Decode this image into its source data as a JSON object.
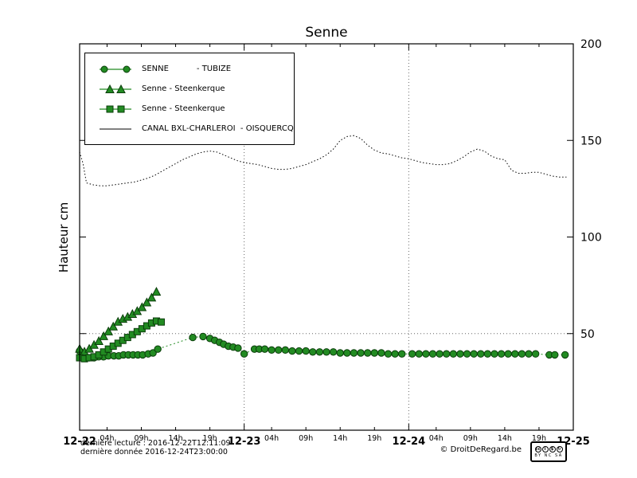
{
  "title": "Senne",
  "y_axis_label": "Hauteur cm",
  "legend": {
    "items": [
      {
        "label": "SENNE           - TUBIZE",
        "marker": "circle-line"
      },
      {
        "label": "Senne - Steenkerque",
        "marker": "triangle"
      },
      {
        "label": "Senne - Steenkerque",
        "marker": "square"
      },
      {
        "label": "CANAL BXL-CHARLEROI  - OISQUERCQ",
        "marker": "plain-line"
      }
    ]
  },
  "footer": {
    "line1": "dernière lecture : 2016-12-22T12:11:09",
    "line2": "dernière donnée  2016-12-24T23:00:00",
    "copyright": "© DroitDeRegard.be",
    "cc_badge": {
      "icons": [
        {
          "name": "cc-logo",
          "glyph": "cc"
        },
        {
          "name": "attribution-icon",
          "glyph": "i"
        },
        {
          "name": "non-commercial-icon",
          "glyph": "$"
        },
        {
          "name": "share-alike-icon",
          "glyph": "↻"
        }
      ],
      "label": "BY NC SA"
    }
  },
  "colors": {
    "series_green": "#228b22",
    "series_green_edge": "#0b3d0b",
    "canal_black": "#000000",
    "grid": "#666666"
  },
  "chart_data": {
    "type": "line",
    "title": "Senne",
    "xlabel": "",
    "ylabel": "Hauteur cm",
    "ylim": [
      0,
      200
    ],
    "xlim": [
      0,
      72
    ],
    "x_unit": "hours since 2016-12-22 00:00",
    "y_ticks": [
      50,
      100,
      150,
      200
    ],
    "x_major_ticks": [
      {
        "hour": 0,
        "label": "12-22"
      },
      {
        "hour": 24,
        "label": "12-23"
      },
      {
        "hour": 48,
        "label": "12-24"
      },
      {
        "hour": 72,
        "label": "12-25"
      }
    ],
    "x_minor_tick_offsets": [
      4,
      9,
      14,
      19
    ],
    "x_minor_tick_labels": [
      "04h",
      "09h",
      "14h",
      "19h"
    ],
    "grid": {
      "vertical_hours": [
        24,
        48
      ],
      "horizontal_values": [
        50
      ]
    },
    "legend_position": "top-left",
    "series": [
      {
        "name": "SENNE - TUBIZE",
        "marker": "circle",
        "line_style": "dotted",
        "color": "#228b22",
        "points": [
          [
            0,
            41
          ],
          [
            0.7,
            38
          ],
          [
            1.4,
            37.5
          ],
          [
            2.1,
            37.5
          ],
          [
            2.8,
            38
          ],
          [
            3.5,
            38
          ],
          [
            4.2,
            38.5
          ],
          [
            5,
            38.5
          ],
          [
            5.7,
            38.5
          ],
          [
            6.4,
            39
          ],
          [
            7.1,
            39
          ],
          [
            7.8,
            39
          ],
          [
            8.5,
            39
          ],
          [
            9.2,
            39
          ],
          [
            10,
            39.5
          ],
          [
            10.7,
            40
          ],
          [
            11.4,
            42
          ],
          [
            16.5,
            48
          ],
          [
            18,
            48.5
          ],
          [
            19,
            47.5
          ],
          [
            19.7,
            46.5
          ],
          [
            20.4,
            45.5
          ],
          [
            21,
            44.5
          ],
          [
            21.7,
            43.5
          ],
          [
            22.4,
            43
          ],
          [
            23.1,
            42.5
          ],
          [
            24,
            39.5
          ],
          [
            25.5,
            42
          ],
          [
            26.2,
            42
          ],
          [
            27,
            42
          ],
          [
            28,
            41.5
          ],
          [
            29,
            41.5
          ],
          [
            30,
            41.5
          ],
          [
            31,
            41
          ],
          [
            32,
            41
          ],
          [
            33,
            41
          ],
          [
            34,
            40.5
          ],
          [
            35,
            40.5
          ],
          [
            36,
            40.5
          ],
          [
            37,
            40.5
          ],
          [
            38,
            40
          ],
          [
            39,
            40
          ],
          [
            40,
            40
          ],
          [
            41,
            40
          ],
          [
            42,
            40
          ],
          [
            43,
            40
          ],
          [
            44,
            40
          ],
          [
            45,
            39.5
          ],
          [
            46,
            39.5
          ],
          [
            47,
            39.5
          ],
          [
            48.5,
            39.5
          ],
          [
            49.5,
            39.5
          ],
          [
            50.5,
            39.5
          ],
          [
            51.5,
            39.5
          ],
          [
            52.5,
            39.5
          ],
          [
            53.5,
            39.5
          ],
          [
            54.5,
            39.5
          ],
          [
            55.5,
            39.5
          ],
          [
            56.5,
            39.5
          ],
          [
            57.5,
            39.5
          ],
          [
            58.5,
            39.5
          ],
          [
            59.5,
            39.5
          ],
          [
            60.5,
            39.5
          ],
          [
            61.5,
            39.5
          ],
          [
            62.5,
            39.5
          ],
          [
            63.5,
            39.5
          ],
          [
            64.5,
            39.5
          ],
          [
            65.5,
            39.5
          ],
          [
            66.5,
            39.5
          ],
          [
            68.5,
            39
          ],
          [
            69.3,
            39
          ],
          [
            70.8,
            39
          ]
        ]
      },
      {
        "name": "Senne - Steenkerque",
        "marker": "triangle",
        "line_style": "solid",
        "color": "#228b22",
        "points": [
          [
            0,
            42
          ],
          [
            0.7,
            40.5
          ],
          [
            1.4,
            42
          ],
          [
            2.1,
            44
          ],
          [
            2.8,
            46
          ],
          [
            3.5,
            48.5
          ],
          [
            4.2,
            51
          ],
          [
            4.9,
            53.5
          ],
          [
            5.6,
            56
          ],
          [
            6.3,
            57.5
          ],
          [
            7,
            58.5
          ],
          [
            7.7,
            60
          ],
          [
            8.4,
            61.5
          ],
          [
            9.1,
            63.5
          ],
          [
            9.8,
            66
          ],
          [
            10.5,
            68.5
          ],
          [
            11.2,
            71.5
          ]
        ]
      },
      {
        "name": "Senne - Steenkerque",
        "marker": "square",
        "line_style": "solid",
        "color": "#228b22",
        "points": [
          [
            0,
            37.5
          ],
          [
            0.7,
            37
          ],
          [
            1.4,
            37.5
          ],
          [
            2.1,
            38
          ],
          [
            2.8,
            39
          ],
          [
            3.5,
            40.5
          ],
          [
            4.2,
            42
          ],
          [
            4.9,
            43.5
          ],
          [
            5.6,
            45
          ],
          [
            6.3,
            46.5
          ],
          [
            7,
            48
          ],
          [
            7.7,
            49.5
          ],
          [
            8.4,
            51
          ],
          [
            9.1,
            52.5
          ],
          [
            9.8,
            54
          ],
          [
            10.5,
            55.5
          ],
          [
            11.2,
            56.5
          ],
          [
            11.9,
            56
          ]
        ]
      },
      {
        "name": "CANAL BXL-CHARLEROI - OISQUERCQ",
        "marker": "none",
        "line_style": "dotted",
        "color": "#000000",
        "points": [
          [
            0,
            144
          ],
          [
            0.5,
            138
          ],
          [
            1,
            128
          ],
          [
            2,
            127
          ],
          [
            3,
            126.5
          ],
          [
            4,
            126.5
          ],
          [
            5,
            127
          ],
          [
            6,
            127.5
          ],
          [
            7,
            128
          ],
          [
            8,
            128.5
          ],
          [
            9,
            129.5
          ],
          [
            10,
            130.5
          ],
          [
            11,
            132
          ],
          [
            12,
            134
          ],
          [
            13,
            136
          ],
          [
            14,
            138
          ],
          [
            15,
            140
          ],
          [
            16,
            141.5
          ],
          [
            17,
            143
          ],
          [
            18,
            144
          ],
          [
            19,
            144.5
          ],
          [
            20,
            144
          ],
          [
            21,
            142.5
          ],
          [
            22,
            141
          ],
          [
            23,
            139.5
          ],
          [
            24,
            138.5
          ],
          [
            25,
            138
          ],
          [
            26,
            137.5
          ],
          [
            27,
            136.5
          ],
          [
            28,
            135.5
          ],
          [
            29,
            135
          ],
          [
            30,
            135
          ],
          [
            31,
            135.5
          ],
          [
            32,
            136.5
          ],
          [
            33,
            137.5
          ],
          [
            34,
            139
          ],
          [
            35,
            140.5
          ],
          [
            36,
            142.5
          ],
          [
            37,
            145.5
          ],
          [
            38,
            150
          ],
          [
            39,
            152
          ],
          [
            40,
            152.5
          ],
          [
            41,
            151
          ],
          [
            42,
            147.5
          ],
          [
            43,
            145
          ],
          [
            44,
            143.5
          ],
          [
            45,
            143
          ],
          [
            46,
            142
          ],
          [
            47,
            141
          ],
          [
            48,
            140.5
          ],
          [
            49,
            139.5
          ],
          [
            50,
            138.5
          ],
          [
            51,
            138
          ],
          [
            52,
            137.5
          ],
          [
            53,
            137.5
          ],
          [
            54,
            138
          ],
          [
            55,
            139.5
          ],
          [
            56,
            141.5
          ],
          [
            57,
            144
          ],
          [
            58,
            145.5
          ],
          [
            59,
            144.5
          ],
          [
            60,
            142
          ],
          [
            61,
            140.5
          ],
          [
            62,
            140
          ],
          [
            63,
            134.5
          ],
          [
            64,
            133
          ],
          [
            65,
            133
          ],
          [
            66,
            133.5
          ],
          [
            67,
            133.5
          ],
          [
            68,
            132.5
          ],
          [
            69,
            131.5
          ],
          [
            70,
            131
          ],
          [
            71,
            131
          ]
        ]
      }
    ]
  }
}
